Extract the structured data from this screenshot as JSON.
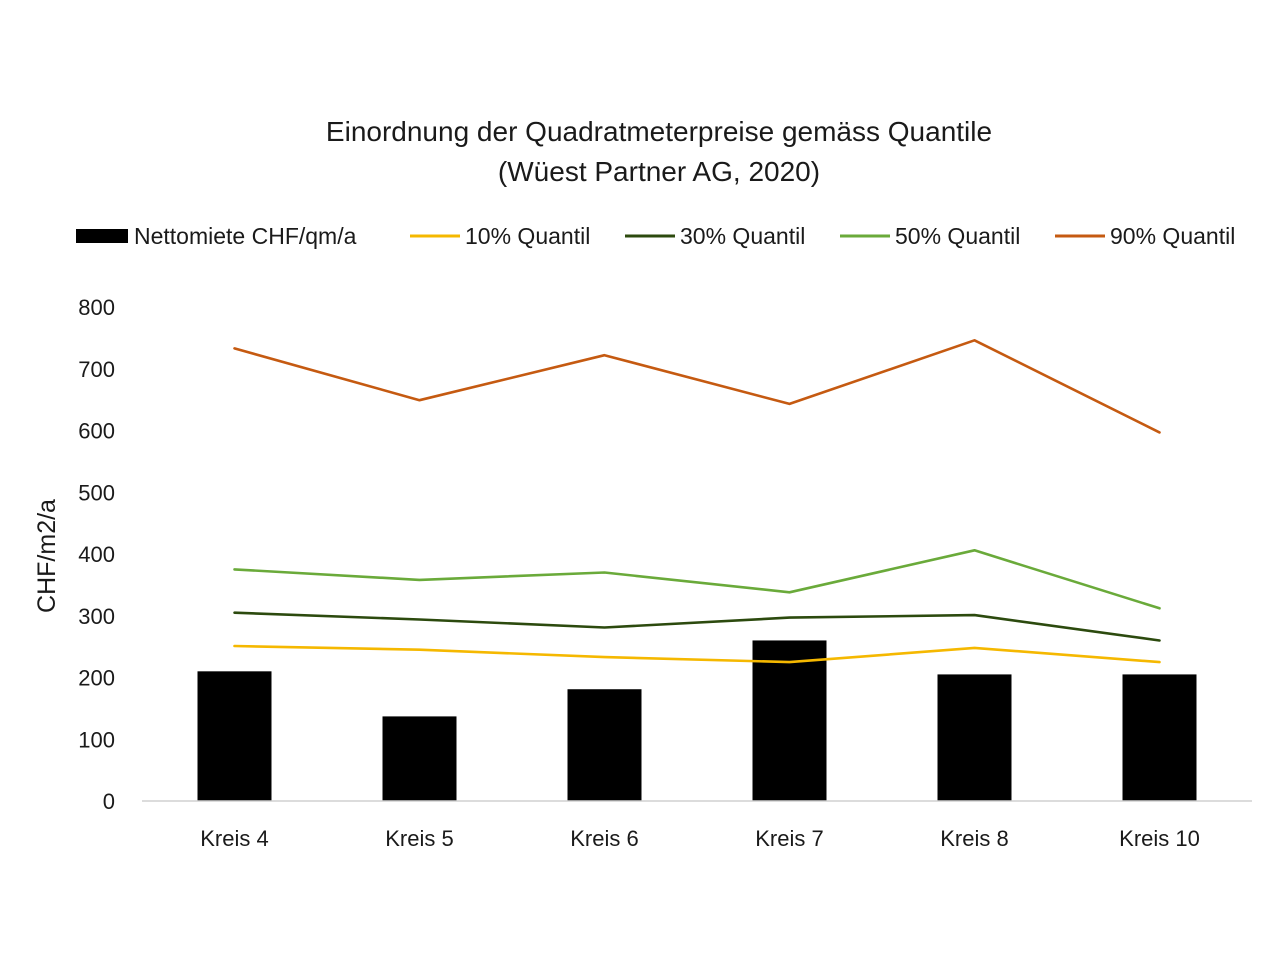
{
  "chart_data": {
    "type": "bar",
    "title_lines": [
      "Einordnung der Quadratmeterpreise gemäss Quantile",
      "(Wüest Partner AG, 2020)"
    ],
    "xlabel": "",
    "ylabel": "CHF/m2/a",
    "ylim": [
      0,
      800
    ],
    "yticks": [
      0,
      100,
      200,
      300,
      400,
      500,
      600,
      700,
      800
    ],
    "grid": false,
    "legend_position": "top",
    "categories": [
      "Kreis 4",
      "Kreis 5",
      "Kreis 6",
      "Kreis 7",
      "Kreis 8",
      "Kreis 10"
    ],
    "bar_series": {
      "name": "Nettomiete CHF/qm/a",
      "color": "#000000",
      "values": [
        210,
        137,
        181,
        260,
        205,
        205
      ]
    },
    "line_series": [
      {
        "name": "10% Quantil",
        "color": "#f5b800",
        "values": [
          251,
          245,
          233,
          225,
          248,
          225
        ]
      },
      {
        "name": "30% Quantil",
        "color": "#2c4a0e",
        "values": [
          305,
          294,
          281,
          297,
          301,
          260
        ]
      },
      {
        "name": "50% Quantil",
        "color": "#6aaa3a",
        "values": [
          375,
          358,
          370,
          338,
          406,
          312
        ]
      },
      {
        "name": "90% Quantil",
        "color": "#c55a11",
        "values": [
          733,
          649,
          722,
          643,
          746,
          597
        ]
      }
    ]
  }
}
